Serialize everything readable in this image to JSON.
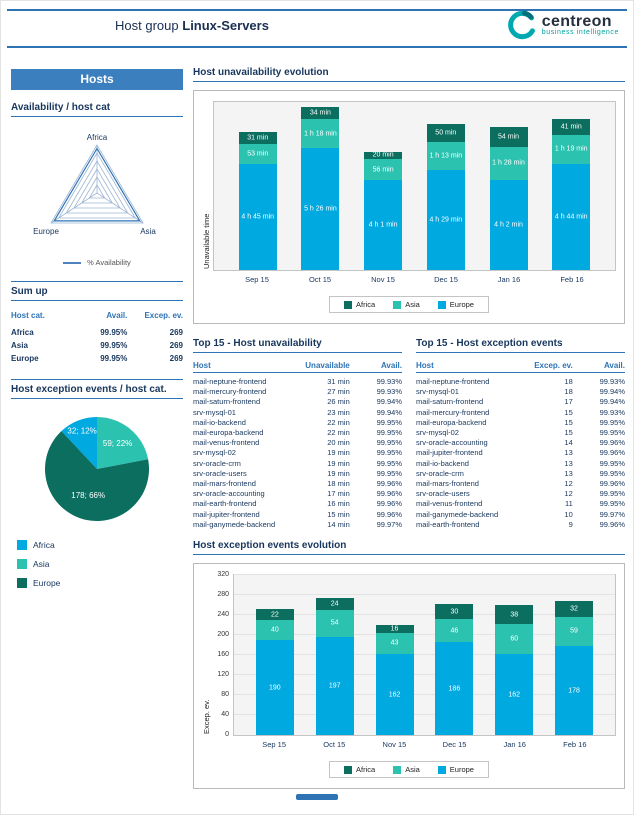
{
  "colors": {
    "africa": "#0b6e5f",
    "asia": "#2cc2b0",
    "europe": "#00a9e0",
    "accent": "#2e74b5",
    "navy": "#17365d"
  },
  "header": {
    "title_prefix": "Host group",
    "title_bold": "Linux-Servers",
    "logo_text": "centreon",
    "logo_sub": "business intelligence"
  },
  "sidebar": {
    "banner": "Hosts",
    "availability_heading": "Availability / host cat",
    "sumup": {
      "heading": "Sum up",
      "columns": [
        "Host cat.",
        "Avail.",
        "Excep. ev."
      ],
      "rows": [
        [
          "Africa",
          "99.95%",
          "269"
        ],
        [
          "Asia",
          "99.95%",
          "269"
        ],
        [
          "Europe",
          "99.95%",
          "269"
        ]
      ]
    },
    "pie_heading": "Host exception events / host cat."
  },
  "sections": {
    "unavail_evolution_title": "Host unavailability evolution",
    "top_unavail_title": "Top 15 - Host unavailability",
    "top_excep_title": "Top 15 - Host exception events",
    "excep_evolution_title": "Host exception events evolution"
  },
  "tables": {
    "top_unavail": {
      "columns": [
        "Host",
        "Unavailable",
        "Avail."
      ],
      "rows": [
        [
          "mail-neptune-frontend",
          "31 min",
          "99.93%"
        ],
        [
          "mail-mercury-frontend",
          "27 min",
          "99.93%"
        ],
        [
          "mail-saturn-frontend",
          "26 min",
          "99.94%"
        ],
        [
          "srv-mysql-01",
          "23 min",
          "99.94%"
        ],
        [
          "mail-io-backend",
          "22 min",
          "99.95%"
        ],
        [
          "mail-europa-backend",
          "22 min",
          "99.95%"
        ],
        [
          "mail-venus-frontend",
          "20 min",
          "99.95%"
        ],
        [
          "srv-mysql-02",
          "19 min",
          "99.95%"
        ],
        [
          "srv-oracle-crm",
          "19 min",
          "99.95%"
        ],
        [
          "srv-oracle-users",
          "19 min",
          "99.95%"
        ],
        [
          "mail-mars-frontend",
          "18 min",
          "99.96%"
        ],
        [
          "srv-oracle-accounting",
          "17 min",
          "99.96%"
        ],
        [
          "mail-earth-frontend",
          "16 min",
          "99.96%"
        ],
        [
          "mail-jupiter-frontend",
          "15 min",
          "99.96%"
        ],
        [
          "mail-ganymede-backend",
          "14 min",
          "99.97%"
        ]
      ]
    },
    "top_excep": {
      "columns": [
        "Host",
        "Excep. ev.",
        "Avail."
      ],
      "rows": [
        [
          "mail-neptune-frontend",
          "18",
          "99.93%"
        ],
        [
          "srv-mysql-01",
          "18",
          "99.94%"
        ],
        [
          "mail-saturn-frontend",
          "17",
          "99.94%"
        ],
        [
          "mail-mercury-frontend",
          "15",
          "99.93%"
        ],
        [
          "mail-europa-backend",
          "15",
          "99.95%"
        ],
        [
          "srv-mysql-02",
          "15",
          "99.95%"
        ],
        [
          "srv-oracle-accounting",
          "14",
          "99.96%"
        ],
        [
          "mail-jupiter-frontend",
          "13",
          "99.96%"
        ],
        [
          "mail-io-backend",
          "13",
          "99.95%"
        ],
        [
          "srv-oracle-crm",
          "13",
          "99.95%"
        ],
        [
          "mail-mars-frontend",
          "12",
          "99.96%"
        ],
        [
          "srv-oracle-users",
          "12",
          "99.95%"
        ],
        [
          "mail-venus-frontend",
          "11",
          "99.95%"
        ],
        [
          "mail-ganymede-backend",
          "10",
          "99.97%"
        ],
        [
          "mail-earth-frontend",
          "9",
          "99.96%"
        ]
      ]
    }
  },
  "chart_data": [
    {
      "id": "availability_radar",
      "type": "radar",
      "title": "Availability / host cat",
      "axes": [
        "Africa",
        "Europe",
        "Asia"
      ],
      "series": [
        {
          "name": "% Availability",
          "values": [
            99.95,
            99.95,
            99.95
          ]
        }
      ],
      "legend_position": "bottom"
    },
    {
      "id": "unavail_evolution",
      "type": "bar",
      "stacked": true,
      "title": "Host unavailability evolution",
      "ylabel": "Unavailable time",
      "yunit": "min",
      "ymax": 450,
      "categories": [
        "Sep 15",
        "Oct 15",
        "Nov 15",
        "Dec 15",
        "Jan 16",
        "Feb 16"
      ],
      "series": [
        {
          "name": "Africa",
          "color": "#0b6e5f",
          "values": [
            31,
            34,
            20,
            50,
            54,
            41
          ],
          "labels": [
            "31 min",
            "34 min",
            "20 min",
            "50 min",
            "54 min",
            "41 min"
          ]
        },
        {
          "name": "Asia",
          "color": "#2cc2b0",
          "values": [
            53,
            78,
            56,
            73,
            88,
            79
          ],
          "labels": [
            "53 min",
            "1 h 18 min",
            "56 min",
            "1 h 13 min",
            "1 h 28 min",
            "1 h 19 min"
          ]
        },
        {
          "name": "Europe",
          "color": "#00a9e0",
          "values": [
            285,
            326,
            241,
            269,
            242,
            284
          ],
          "labels": [
            "4 h 45 min",
            "5 h 26 min",
            "4 h 1 min",
            "4 h 29 min",
            "4 h 2 min",
            "4 h 44 min"
          ]
        }
      ],
      "legend_position": "bottom"
    },
    {
      "id": "excep_by_host_cat",
      "type": "pie",
      "title": "Host exception events / host cat.",
      "start_deg": -133.2,
      "slices": [
        {
          "name": "Africa",
          "value": 32,
          "pct": 12,
          "label": "32; 12%",
          "color": "#00a9e0",
          "label_r": 0.78
        },
        {
          "name": "Asia",
          "value": 59,
          "pct": 22,
          "label": "59; 22%",
          "color": "#2cc2b0",
          "label_r": 0.62
        },
        {
          "name": "Europe",
          "value": 178,
          "pct": 66,
          "label": "178; 66%",
          "color": "#0b6e5f",
          "label_r": 0.55
        }
      ],
      "legend_position": "bottom-left"
    },
    {
      "id": "excep_evolution",
      "type": "bar",
      "stacked": true,
      "title": "Host exception events evolution",
      "ylabel": "Excep. ev.",
      "ylim": [
        0,
        320
      ],
      "yticks": [
        0,
        40,
        80,
        120,
        160,
        200,
        240,
        280,
        320
      ],
      "categories": [
        "Sep 15",
        "Oct 15",
        "Nov 15",
        "Dec 15",
        "Jan 16",
        "Feb 16"
      ],
      "series": [
        {
          "name": "Africa",
          "color": "#0b6e5f",
          "values": [
            22,
            24,
            16,
            30,
            38,
            32
          ]
        },
        {
          "name": "Asia",
          "color": "#2cc2b0",
          "values": [
            40,
            54,
            43,
            46,
            60,
            59
          ]
        },
        {
          "name": "Europe",
          "color": "#00a9e0",
          "values": [
            190,
            197,
            162,
            186,
            162,
            178
          ]
        }
      ],
      "legend_position": "bottom"
    }
  ]
}
